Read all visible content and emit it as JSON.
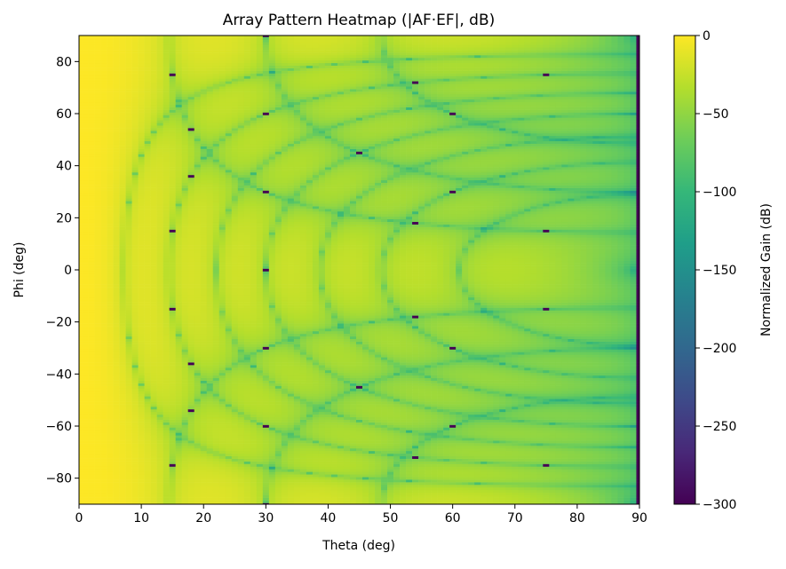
{
  "chart_data": {
    "type": "heatmap",
    "title": "Array Pattern Heatmap (|AF·EF|, dB)",
    "xlabel": "Theta (deg)",
    "ylabel": "Phi (deg)",
    "xlim": [
      0,
      90
    ],
    "ylim": [
      -90,
      90
    ],
    "xticks": [
      "0",
      "10",
      "20",
      "30",
      "40",
      "50",
      "60",
      "70",
      "80",
      "90"
    ],
    "yticks": [
      "−80",
      "−60",
      "−40",
      "−20",
      "0",
      "20",
      "40",
      "60",
      "80"
    ],
    "colorbar": {
      "label": "Normalized Gain (dB)",
      "range": [
        -300,
        0
      ],
      "ticks": [
        "0",
        "−50",
        "−100",
        "−150",
        "−200",
        "−250",
        "−300"
      ],
      "colormap": "viridis"
    },
    "grid": false,
    "theta_step_deg": 1,
    "phi_step_deg": 1
  }
}
